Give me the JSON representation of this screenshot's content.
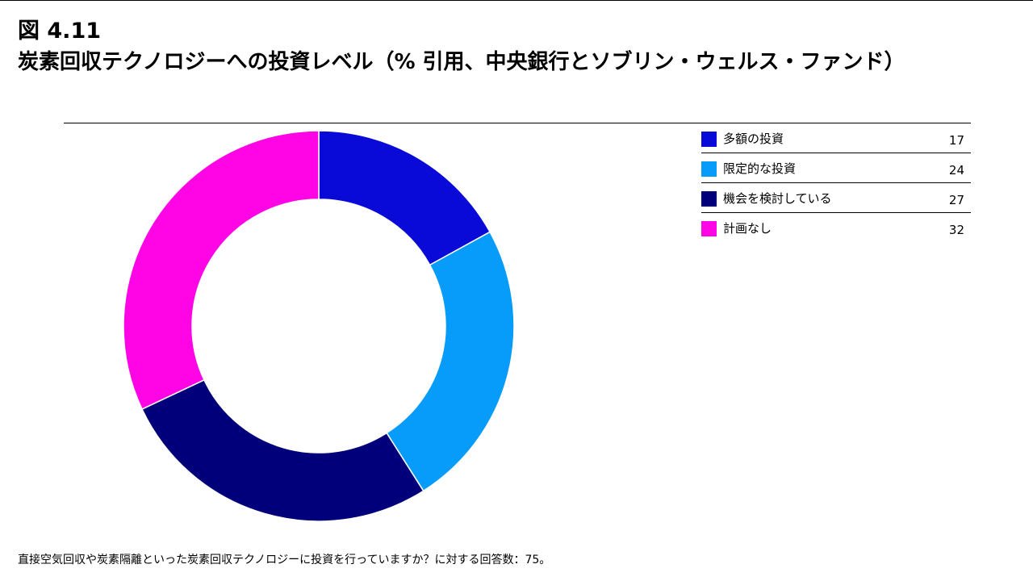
{
  "figure": {
    "number": "図 4.11",
    "title": "炭素回収テクノロジーへの投資レベル（% 引用、中央銀行とソブリン・ウェルス・ファンド）"
  },
  "chart_data": {
    "type": "pie",
    "title": "炭素回収テクノロジーへの投資レベル（% 引用、中央銀行とソブリン・ウェルス・ファンド）",
    "unit": "%",
    "categories": [
      "多額の投資",
      "限定的な投資",
      "機会を検討している",
      "計画なし"
    ],
    "values": [
      17,
      24,
      27,
      32
    ],
    "colors": [
      "#0a0ad8",
      "#079bfa",
      "#01007a",
      "#ff05e6"
    ],
    "legend_position": "right",
    "donut": true
  },
  "footnote": "直接空気回収や炭素隔離といった炭素回収テクノロジーに投資を行っていますか？に対する回答数：75。"
}
